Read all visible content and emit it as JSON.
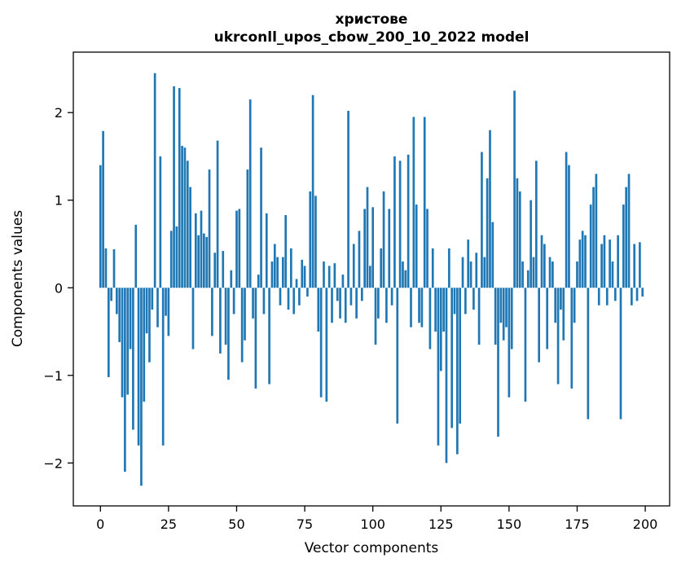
{
  "chart_data": {
    "type": "bar",
    "title_line1": "христове",
    "title_line2": "ukrconll_upos_cbow_200_10_2022 model",
    "xlabel": "Vector components",
    "ylabel": "Components values",
    "bar_color": "#1f77b4",
    "grid": false,
    "legend": "none",
    "xlim": [
      -9.95,
      208.95
    ],
    "ylim": [
      -2.49,
      2.69
    ],
    "xticks": [
      0,
      25,
      50,
      75,
      100,
      125,
      150,
      175,
      200
    ],
    "yticks": [
      -2,
      -1,
      0,
      1,
      2
    ],
    "x_start": 0,
    "values": [
      1.4,
      1.79,
      0.45,
      -1.02,
      -0.15,
      0.44,
      -0.3,
      -0.62,
      -1.25,
      -2.1,
      -1.22,
      -0.7,
      -1.62,
      0.72,
      -1.8,
      -2.26,
      -1.3,
      -0.52,
      -0.85,
      -0.25,
      2.45,
      -0.45,
      1.5,
      -1.8,
      -0.32,
      -0.55,
      0.65,
      2.3,
      0.7,
      2.28,
      1.62,
      1.6,
      1.45,
      1.15,
      -0.7,
      0.85,
      0.6,
      0.88,
      0.62,
      0.58,
      1.35,
      -0.55,
      0.4,
      1.68,
      -0.75,
      0.42,
      -0.65,
      -1.05,
      0.2,
      -0.3,
      0.88,
      0.9,
      -0.85,
      -0.6,
      1.35,
      2.15,
      -0.35,
      -1.15,
      0.15,
      1.6,
      -0.3,
      0.85,
      -1.1,
      0.3,
      0.5,
      0.35,
      -0.2,
      0.35,
      0.83,
      -0.25,
      0.45,
      -0.3,
      0.1,
      -0.2,
      0.32,
      0.25,
      -0.1,
      1.1,
      2.2,
      1.05,
      -0.5,
      -1.25,
      0.3,
      -1.3,
      0.25,
      -0.4,
      0.28,
      -0.15,
      -0.35,
      0.15,
      -0.4,
      2.02,
      -0.2,
      0.5,
      -0.35,
      0.65,
      -0.15,
      0.9,
      1.15,
      0.25,
      0.92,
      -0.65,
      -0.35,
      0.45,
      1.1,
      -0.4,
      0.9,
      -0.2,
      1.5,
      -1.55,
      1.45,
      0.3,
      0.2,
      1.52,
      -0.45,
      1.95,
      0.95,
      -0.4,
      -0.45,
      1.95,
      0.9,
      -0.7,
      0.45,
      -0.5,
      -1.8,
      -0.95,
      -0.5,
      -2.0,
      0.45,
      -1.6,
      -0.3,
      -1.9,
      -1.55,
      0.35,
      -0.3,
      0.55,
      0.3,
      -0.25,
      0.4,
      -0.65,
      1.55,
      0.35,
      1.25,
      1.8,
      0.75,
      -0.65,
      -1.7,
      -0.4,
      -0.6,
      -0.45,
      -1.25,
      -0.7,
      2.25,
      1.25,
      1.1,
      0.3,
      -1.3,
      0.2,
      1.0,
      0.35,
      1.45,
      -0.85,
      0.6,
      0.5,
      -0.7,
      0.35,
      0.3,
      -0.4,
      -1.1,
      -0.25,
      -0.6,
      1.55,
      1.4,
      -1.15,
      -0.4,
      0.3,
      0.55,
      0.65,
      0.6,
      -1.5,
      0.95,
      1.15,
      1.3,
      -0.2,
      0.5,
      0.6,
      -0.2,
      0.55,
      0.3,
      -0.15,
      0.6,
      -1.5,
      0.95,
      1.15,
      1.3,
      -0.2,
      0.5,
      -0.15,
      0.52,
      -0.1
    ]
  }
}
